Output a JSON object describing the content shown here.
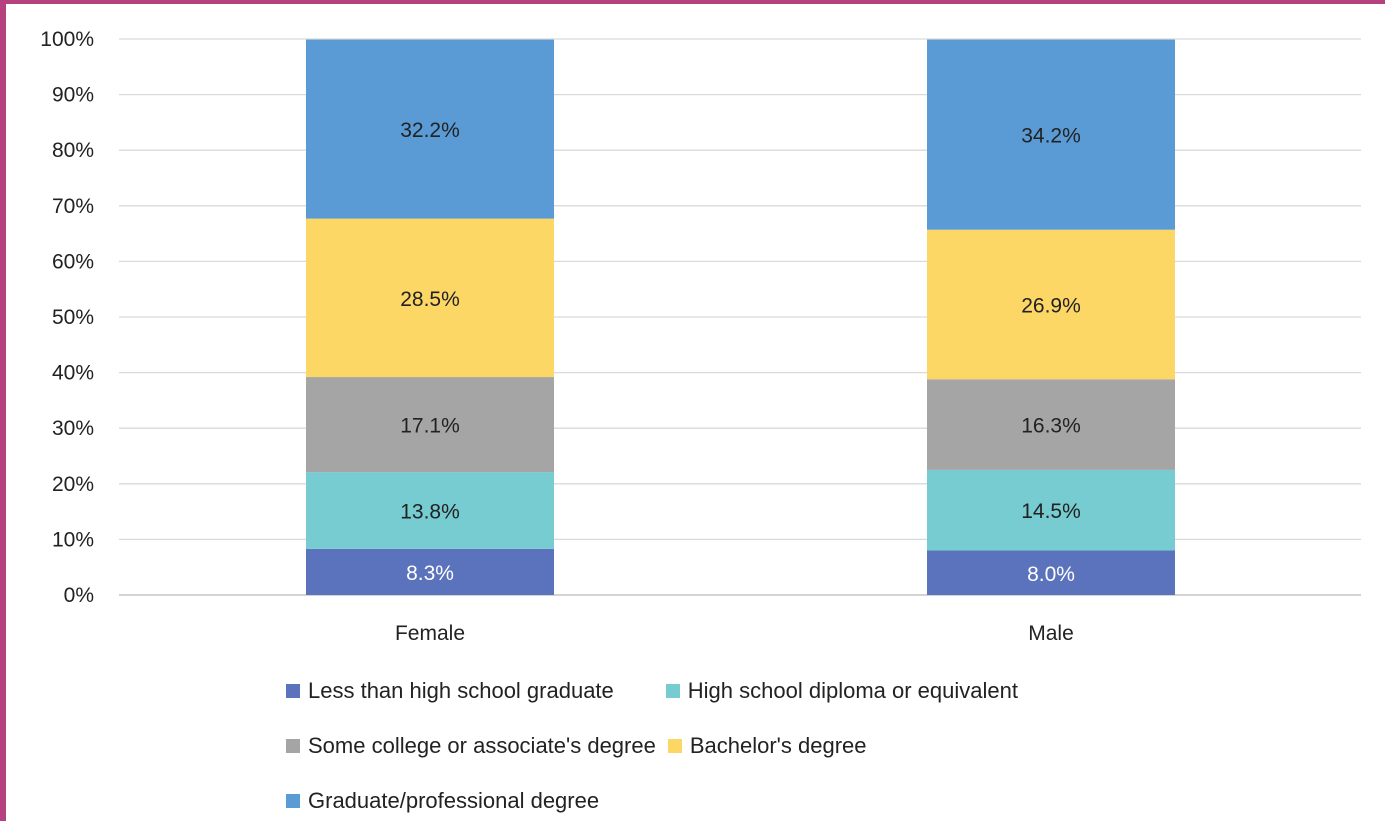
{
  "chart_data": {
    "type": "bar",
    "stacked": true,
    "percent": true,
    "categories": [
      "Female",
      "Male"
    ],
    "y_ticks": [
      "0%",
      "10%",
      "20%",
      "30%",
      "40%",
      "50%",
      "60%",
      "70%",
      "80%",
      "90%",
      "100%"
    ],
    "ylim": [
      0,
      100
    ],
    "grid": true,
    "legend_position": "bottom",
    "series": [
      {
        "name": "Less than high school graduate",
        "values": [
          8.3,
          8.0
        ],
        "labels": [
          "8.3%",
          "8.0%"
        ],
        "color": "#5b73bc",
        "label_color": "#ffffff"
      },
      {
        "name": "High school diploma or equivalent",
        "values": [
          13.8,
          14.5
        ],
        "labels": [
          "13.8%",
          "14.5%"
        ],
        "color": "#76ccd0",
        "label_color": "#222222"
      },
      {
        "name": "Some college or associate's degree",
        "values": [
          17.1,
          16.3
        ],
        "labels": [
          "17.1%",
          "16.3%"
        ],
        "color": "#a5a5a5",
        "label_color": "#222222"
      },
      {
        "name": "Bachelor's degree",
        "values": [
          28.5,
          26.9
        ],
        "labels": [
          "28.5%",
          "26.9%"
        ],
        "color": "#fdd766",
        "label_color": "#222222"
      },
      {
        "name": "Graduate/professional degree",
        "values": [
          32.2,
          34.2
        ],
        "labels": [
          "32.2%",
          "34.2%"
        ],
        "color": "#5b9bd5",
        "label_color": "#222222"
      }
    ]
  }
}
